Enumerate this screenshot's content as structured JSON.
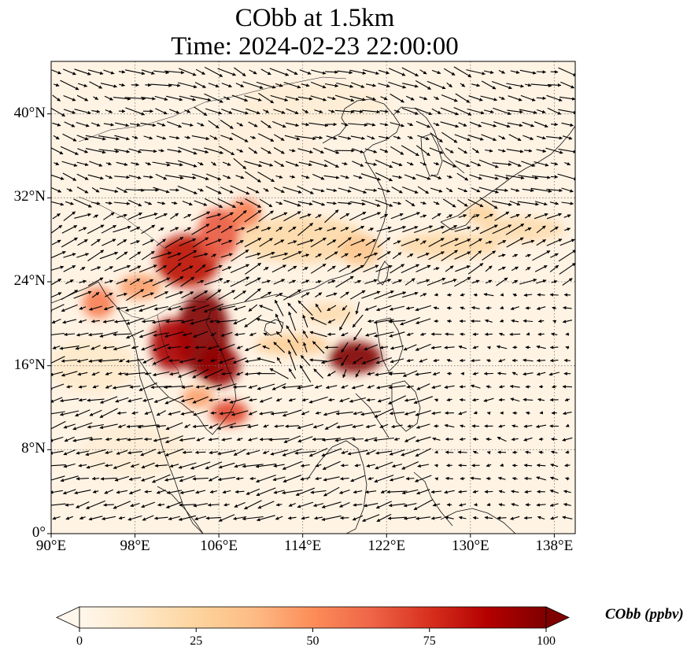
{
  "title": {
    "line1": "CObb at 1.5km",
    "line2": "Time: 2024-02-23 22:00:00"
  },
  "map": {
    "extent": {
      "lon_min": 90,
      "lon_max": 140,
      "lat_min": 0,
      "lat_max": 45
    },
    "lon_ticks": [
      {
        "value": 90,
        "label": "90°E"
      },
      {
        "value": 98,
        "label": "98°E"
      },
      {
        "value": 106,
        "label": "106°E"
      },
      {
        "value": 114,
        "label": "114°E"
      },
      {
        "value": 122,
        "label": "122°E"
      },
      {
        "value": 130,
        "label": "130°E"
      },
      {
        "value": 138,
        "label": "138°E"
      }
    ],
    "lat_ticks": [
      {
        "value": 0,
        "label": "0°"
      },
      {
        "value": 8,
        "label": "8°N"
      },
      {
        "value": 16,
        "label": "16°N"
      },
      {
        "value": 24,
        "label": "24°N"
      },
      {
        "value": 32,
        "label": "32°N"
      },
      {
        "value": 40,
        "label": "40°N"
      }
    ],
    "gridlines": true,
    "plumes": [
      {
        "lon": 103.0,
        "lat": 26.0,
        "rlon": 3.0,
        "rlat": 2.5,
        "value": 85
      },
      {
        "lon": 106.0,
        "lat": 28.5,
        "rlon": 2.0,
        "rlat": 2.5,
        "value": 65
      },
      {
        "lon": 108.5,
        "lat": 30.5,
        "rlon": 1.5,
        "rlat": 1.5,
        "value": 55
      },
      {
        "lon": 104.5,
        "lat": 19.0,
        "rlon": 2.5,
        "rlat": 4.0,
        "value": 100
      },
      {
        "lon": 101.5,
        "lat": 18.0,
        "rlon": 2.0,
        "rlat": 2.5,
        "value": 90
      },
      {
        "lon": 106.0,
        "lat": 16.0,
        "rlon": 2.0,
        "rlat": 2.0,
        "value": 95
      },
      {
        "lon": 94.5,
        "lat": 22.0,
        "rlon": 1.5,
        "rlat": 1.5,
        "value": 55
      },
      {
        "lon": 98.5,
        "lat": 23.5,
        "rlon": 2.0,
        "rlat": 1.2,
        "value": 45
      },
      {
        "lon": 107.0,
        "lat": 11.5,
        "rlon": 1.8,
        "rlat": 1.2,
        "value": 70
      },
      {
        "lon": 104.0,
        "lat": 13.0,
        "rlon": 1.5,
        "rlat": 1.0,
        "value": 45
      },
      {
        "lon": 119.0,
        "lat": 16.8,
        "rlon": 2.5,
        "rlat": 1.5,
        "value": 100
      },
      {
        "lon": 113.0,
        "lat": 18.0,
        "rlon": 3.5,
        "rlat": 1.0,
        "value": 28
      },
      {
        "lon": 116.5,
        "lat": 21.0,
        "rlon": 2.5,
        "rlat": 1.0,
        "value": 20
      },
      {
        "lon": 114.0,
        "lat": 28.0,
        "rlon": 6.0,
        "rlat": 2.2,
        "value": 22
      },
      {
        "lon": 119.5,
        "lat": 27.0,
        "rlon": 2.0,
        "rlat": 1.5,
        "value": 32
      },
      {
        "lon": 128.0,
        "lat": 27.5,
        "rlon": 5.0,
        "rlat": 1.2,
        "value": 22
      },
      {
        "lon": 135.0,
        "lat": 29.0,
        "rlon": 4.0,
        "rlat": 1.2,
        "value": 20
      },
      {
        "lon": 131.0,
        "lat": 30.5,
        "rlon": 1.5,
        "rlat": 1.0,
        "value": 25
      },
      {
        "lon": 94.0,
        "lat": 16.0,
        "rlon": 4.0,
        "rlat": 2.5,
        "value": 12
      },
      {
        "lon": 110.0,
        "lat": 36.0,
        "rlon": 6.0,
        "rlat": 4.0,
        "value": 6
      },
      {
        "lon": 115.0,
        "lat": 41.0,
        "rlon": 7.0,
        "rlat": 2.0,
        "value": 8
      },
      {
        "lon": 98.0,
        "lat": 8.0,
        "rlon": 5.0,
        "rlat": 2.5,
        "value": 8
      }
    ]
  },
  "colorbar": {
    "label": "CObb (ppbv)",
    "min": 0,
    "max": 100,
    "extend": "both",
    "ticks": [
      {
        "value": 0,
        "label": "0"
      },
      {
        "value": 25,
        "label": "25"
      },
      {
        "value": 50,
        "label": "50"
      },
      {
        "value": 75,
        "label": "75"
      },
      {
        "value": 100,
        "label": "100"
      }
    ],
    "colormap": [
      "#fff7ec",
      "#fee8c8",
      "#fdd49e",
      "#fdbb84",
      "#fc8d59",
      "#ef6548",
      "#d7301f",
      "#b30000",
      "#7f0000"
    ]
  }
}
